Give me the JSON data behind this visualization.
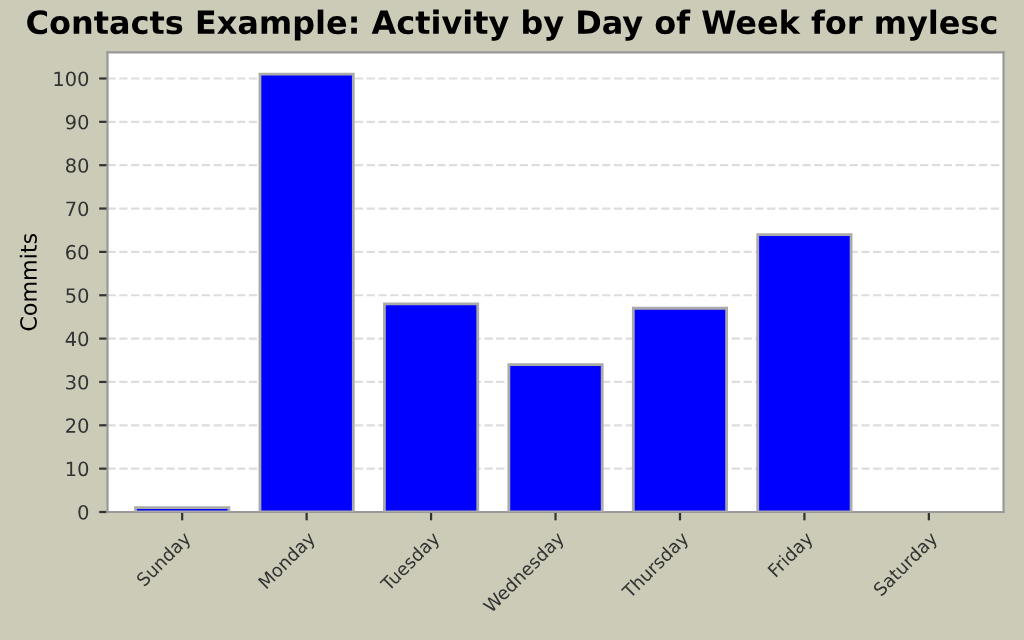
{
  "chart_data": {
    "type": "bar",
    "title": "Contacts Example: Activity by Day of Week for mylesc",
    "ylabel": "Commits",
    "categories": [
      "Sunday",
      "Monday",
      "Tuesday",
      "Wednesday",
      "Thursday",
      "Friday",
      "Saturday"
    ],
    "values": [
      1,
      101,
      48,
      34,
      47,
      64,
      0
    ],
    "color": "#0000ff",
    "ylim": [
      0,
      106
    ],
    "yticks": [
      0,
      10,
      20,
      30,
      40,
      50,
      60,
      70,
      80,
      90,
      100
    ],
    "grid": "y"
  }
}
